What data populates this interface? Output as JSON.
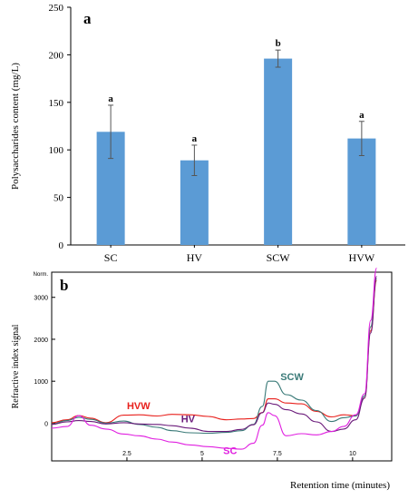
{
  "chart_data": [
    {
      "type": "bar",
      "panel_label": "a",
      "ylabel": "Polysaccharides  content  (mg/L)",
      "ylim": [
        0,
        250
      ],
      "y_ticks": [
        0,
        50,
        100,
        150,
        200,
        250
      ],
      "categories": [
        "SC",
        "HV",
        "SCW",
        "HVW"
      ],
      "values": [
        119,
        89,
        196,
        112
      ],
      "error": [
        28,
        16,
        9,
        18
      ],
      "annotations": [
        "a",
        "a",
        "b",
        "a"
      ],
      "bar_color": "#5b9bd5",
      "grid": false
    },
    {
      "type": "line",
      "panel_label": "b",
      "ylabel": "Refractive  index  signal",
      "xlabel": "Retention  time  (minutes)",
      "y_unit_label": "Norm.",
      "xlim": [
        0,
        11.3
      ],
      "ylim": [
        -900,
        3600
      ],
      "x_ticks": [
        2.5,
        5,
        7.5,
        10
      ],
      "y_ticks": [
        0,
        1000,
        2000,
        3000
      ],
      "grid": false,
      "series": [
        {
          "name": "HVW",
          "color": "#e8201c",
          "x": [
            0,
            0.5,
            0.9,
            1.3,
            1.8,
            2.4,
            2.9,
            3.5,
            4.0,
            4.6,
            5.2,
            5.8,
            6.3,
            6.7,
            7.0,
            7.2,
            7.4,
            7.8,
            8.3,
            8.8,
            9.3,
            9.7,
            10.1,
            10.4,
            10.6,
            10.8
          ],
          "y": [
            10,
            80,
            180,
            120,
            10,
            190,
            200,
            170,
            210,
            200,
            160,
            80,
            100,
            110,
            250,
            580,
            580,
            480,
            460,
            280,
            150,
            200,
            180,
            600,
            2200,
            3400
          ]
        },
        {
          "name": "SCW",
          "color": "#3a7a78",
          "x": [
            0,
            0.5,
            0.9,
            1.3,
            1.8,
            2.4,
            2.9,
            3.5,
            4.0,
            4.6,
            5.2,
            5.8,
            6.3,
            6.7,
            7.0,
            7.2,
            7.4,
            7.8,
            8.3,
            8.8,
            9.3,
            9.7,
            10.1,
            10.4,
            10.6,
            10.8
          ],
          "y": [
            -20,
            60,
            140,
            90,
            0,
            50,
            -30,
            -100,
            -180,
            -230,
            -240,
            -220,
            -180,
            -30,
            400,
            1000,
            1000,
            680,
            550,
            300,
            40,
            130,
            170,
            650,
            2300,
            3450
          ]
        },
        {
          "name": "HV",
          "color": "#6a1a7a",
          "x": [
            0,
            0.5,
            0.9,
            1.3,
            1.8,
            2.4,
            2.9,
            3.5,
            4.0,
            4.6,
            5.2,
            5.8,
            6.3,
            6.7,
            7.0,
            7.2,
            7.4,
            7.8,
            8.3,
            8.8,
            9.3,
            9.7,
            10.1,
            10.4,
            10.6,
            10.8
          ],
          "y": [
            -30,
            30,
            60,
            40,
            -20,
            10,
            -20,
            -30,
            -60,
            -120,
            -200,
            -200,
            -150,
            -40,
            250,
            480,
            450,
            320,
            220,
            30,
            -200,
            -140,
            80,
            600,
            2150,
            3500
          ]
        },
        {
          "name": "SC",
          "color": "#e020e0",
          "x": [
            0,
            0.5,
            0.9,
            1.3,
            1.8,
            2.4,
            2.9,
            3.5,
            4.0,
            4.6,
            5.2,
            5.8,
            6.3,
            6.7,
            7.0,
            7.2,
            7.4,
            7.8,
            8.3,
            8.8,
            9.3,
            9.7,
            10.1,
            10.4,
            10.6,
            10.8
          ],
          "y": [
            -120,
            -80,
            180,
            -50,
            -140,
            -260,
            -300,
            -380,
            -450,
            -520,
            -560,
            -600,
            -620,
            -480,
            -50,
            250,
            180,
            -300,
            -250,
            -280,
            -200,
            -80,
            200,
            700,
            2450,
            3700
          ]
        }
      ],
      "series_label_positions": [
        {
          "name": "HVW",
          "at_x": 2.5,
          "at_y": 330
        },
        {
          "name": "SCW",
          "at_x": 7.6,
          "at_y": 1030
        },
        {
          "name": "HV",
          "at_x": 4.3,
          "at_y": 20
        },
        {
          "name": "SC",
          "at_x": 5.7,
          "at_y": -740
        }
      ]
    }
  ]
}
